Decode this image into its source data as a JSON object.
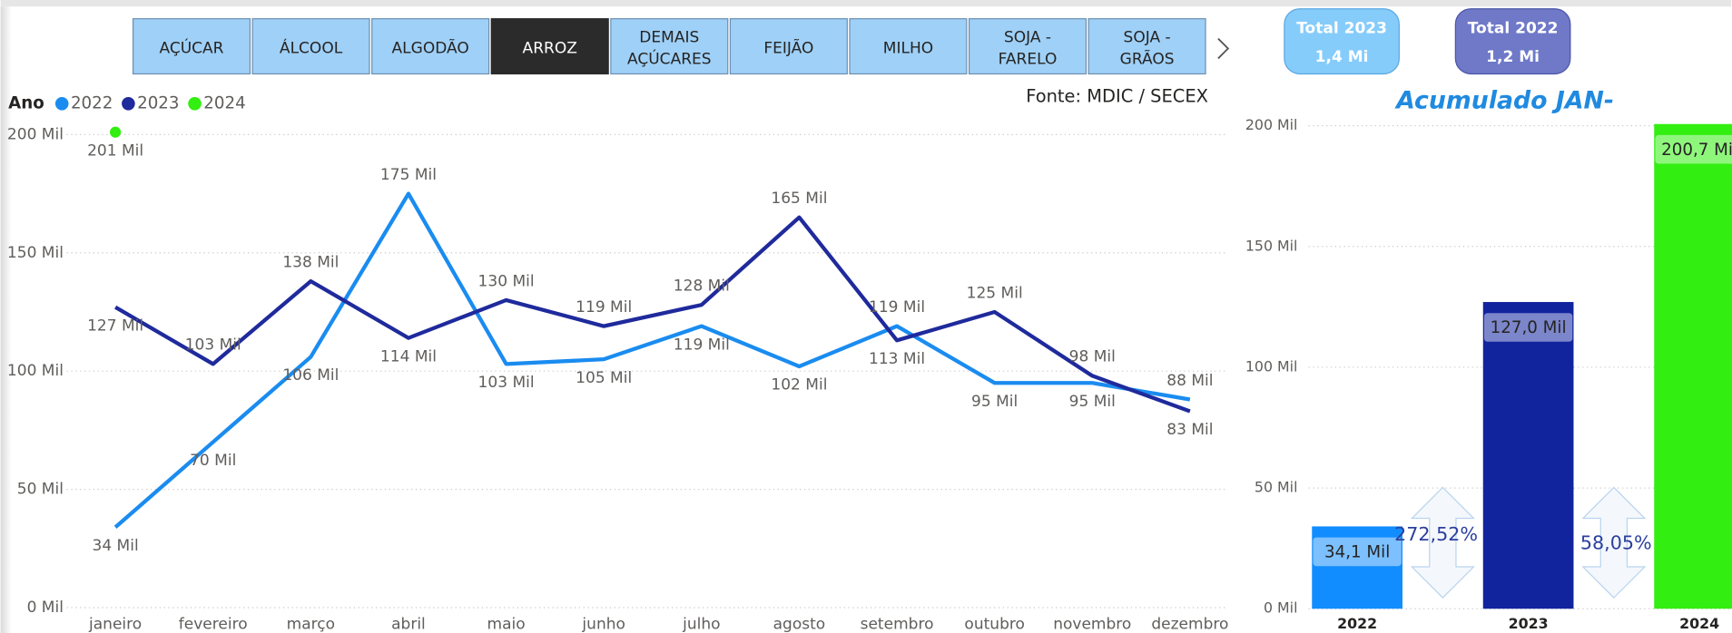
{
  "tabs": [
    [
      "AÇÚCAR"
    ],
    [
      "ÁLCOOL"
    ],
    [
      "ALGODÃO"
    ],
    [
      "ARROZ"
    ],
    [
      "DEMAIS",
      "AÇÚCARES"
    ],
    [
      "FEIJÃO"
    ],
    [
      "MILHO"
    ],
    [
      "SOJA -",
      "FARELO"
    ],
    [
      "SOJA -",
      "GRÃOS"
    ]
  ],
  "selected_tab": 3,
  "buttons": [
    {
      "title": "Total 2023",
      "value": "1,4 Mi",
      "color": "#86ccfb",
      "border": "#5ba7e0"
    },
    {
      "title": "Total 2022",
      "value": "1,2 Mi",
      "color": "#6f79c8",
      "border": "#4b55a8"
    }
  ],
  "chart_data": [
    {
      "type": "line",
      "legend_title": "Ano",
      "source": "Fonte: MDIC / SECEX",
      "categories": [
        "janeiro",
        "fevereiro",
        "março",
        "abril",
        "maio",
        "junho",
        "julho",
        "agosto",
        "setembro",
        "outubro",
        "novembro",
        "dezembro"
      ],
      "series": [
        {
          "name": "2022",
          "color": "#1a8cf0",
          "values": [
            34,
            70,
            106,
            175,
            103,
            105,
            119,
            102,
            119,
            95,
            95,
            88
          ],
          "value_labels": [
            "34 Mil",
            "70 Mil",
            "106 Mil",
            "175 Mil",
            "103 Mil",
            "105 Mil",
            "119 Mil",
            "102 Mil",
            "119 Mil",
            "95 Mil",
            "95 Mil",
            "88 Mil"
          ]
        },
        {
          "name": "2023",
          "color": "#1f2a9c",
          "values": [
            127,
            103,
            138,
            114,
            130,
            119,
            128,
            165,
            113,
            125,
            98,
            83
          ],
          "value_labels": [
            "127 Mil",
            "103 Mil",
            "138 Mil",
            "114 Mil",
            "130 Mil",
            "119 Mil",
            "128 Mil",
            "165 Mil",
            "113 Mil",
            "125 Mil",
            "98 Mil",
            "83 Mil"
          ]
        },
        {
          "name": "2024",
          "color": "#33ee11",
          "values": [
            201,
            null,
            null,
            null,
            null,
            null,
            null,
            null,
            null,
            null,
            null,
            null
          ],
          "value_labels": [
            "201 Mil",
            null,
            null,
            null,
            null,
            null,
            null,
            null,
            null,
            null,
            null,
            null
          ]
        }
      ],
      "ylim": [
        0,
        200
      ],
      "yticks": [
        {
          "value": 0,
          "label": "0 Mil"
        },
        {
          "value": 50,
          "label": "50 Mil"
        },
        {
          "value": 100,
          "label": "100 Mil"
        },
        {
          "value": 150,
          "label": "150 Mil"
        },
        {
          "value": 200,
          "label": "200 Mil"
        }
      ],
      "grid": true
    },
    {
      "type": "bar",
      "title": "Acumulado JAN-",
      "categories": [
        "2022",
        "2023",
        "2024"
      ],
      "values": [
        34.1,
        127.0,
        200.7
      ],
      "value_labels": [
        "34,1 Mil",
        "127,0 Mil",
        "200,7 Mil"
      ],
      "colors": [
        "#118dff",
        "#12239e",
        "#33ee11"
      ],
      "annotations": [
        "272,52%",
        "58,05%"
      ],
      "ylim": [
        0,
        200
      ],
      "yticks": [
        {
          "value": 0,
          "label": "0 Mil"
        },
        {
          "value": 50,
          "label": "50 Mil"
        },
        {
          "value": 100,
          "label": "100 Mil"
        },
        {
          "value": 150,
          "label": "150 Mil"
        },
        {
          "value": 200,
          "label": "200 Mil"
        }
      ],
      "grid": true
    }
  ]
}
